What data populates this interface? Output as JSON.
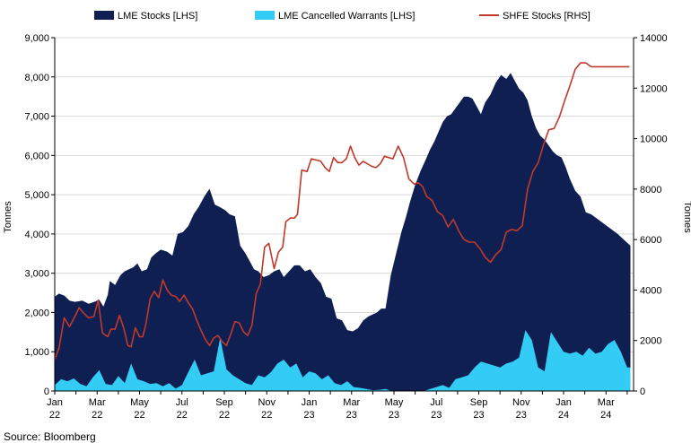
{
  "chart_data": {
    "type": "area",
    "source": "Source: Bloomberg",
    "y_left_label": "Tonnes",
    "y_right_label": "Tonnes",
    "y_left_range": [
      0,
      9000
    ],
    "y_right_range": [
      0,
      14000
    ],
    "y_left_ticks": [
      "0",
      "1,000",
      "2,000",
      "3,000",
      "4,000",
      "5,000",
      "6,000",
      "7,000",
      "8,000",
      "9,000"
    ],
    "y_right_ticks": [
      "0",
      "2000",
      "4000",
      "6000",
      "8000",
      "10000",
      "12000",
      "14000"
    ],
    "x_tick_labels": [
      {
        "month": "Jan",
        "year": "22"
      },
      {
        "month": "Mar",
        "year": "22"
      },
      {
        "month": "May",
        "year": "22"
      },
      {
        "month": "Jul",
        "year": "22"
      },
      {
        "month": "Sep",
        "year": "22"
      },
      {
        "month": "Nov",
        "year": "22"
      },
      {
        "month": "Jan",
        "year": "23"
      },
      {
        "month": "Mar",
        "year": "23"
      },
      {
        "month": "May",
        "year": "23"
      },
      {
        "month": "Jul",
        "year": "23"
      },
      {
        "month": "Sep",
        "year": "23"
      },
      {
        "month": "Nov",
        "year": "23"
      },
      {
        "month": "Jan",
        "year": "24"
      },
      {
        "month": "Mar",
        "year": "24"
      }
    ],
    "x_range_months": [
      0,
      27.3
    ],
    "colors": {
      "lme_stocks": "#0f1f52",
      "cancelled": "#33ccf5",
      "shfe": "#c0392b"
    },
    "series": [
      {
        "name": "LME Stocks [LHS]",
        "axis": "left",
        "x": [
          0,
          0.2,
          0.45,
          0.7,
          0.95,
          1.3,
          1.6,
          1.9,
          2.1,
          2.3,
          2.5,
          2.6,
          2.85,
          3.1,
          3.3,
          3.5,
          3.7,
          3.9,
          4.1,
          4.35,
          4.55,
          4.75,
          5.0,
          5.3,
          5.55,
          5.8,
          6.05,
          6.3,
          6.55,
          6.8,
          7.05,
          7.3,
          7.55,
          7.8,
          8.05,
          8.25,
          8.5,
          8.75,
          9.0,
          9.2,
          9.4,
          9.6,
          9.85,
          10.1,
          10.35,
          10.6,
          10.8,
          11.05,
          11.3,
          11.55,
          11.8,
          12.05,
          12.3,
          12.55,
          12.8,
          13.05,
          13.3,
          13.55,
          13.8,
          14.05,
          14.3,
          14.55,
          14.8,
          15.0,
          15.2,
          15.4,
          15.6,
          15.85,
          16.1,
          16.35,
          16.55,
          16.75,
          17.0,
          17.25,
          17.5,
          17.7,
          17.9,
          18.1,
          18.3,
          18.5,
          18.7,
          18.9,
          19.1,
          19.3,
          19.5,
          19.7,
          19.9,
          20.1,
          20.3,
          20.55,
          20.8,
          21.05,
          21.3,
          21.5,
          21.7,
          21.9,
          22.1,
          22.3,
          22.5,
          22.7,
          22.9,
          23.1,
          23.3,
          23.5,
          23.7,
          23.9,
          24.1,
          24.3,
          24.55,
          24.8,
          25.05,
          25.3,
          25.55,
          25.8,
          26.05,
          26.3,
          26.55,
          26.75,
          26.95,
          27.15
        ],
        "values": [
          2400,
          2480,
          2430,
          2300,
          2270,
          2300,
          2220,
          2280,
          2320,
          2150,
          2450,
          2800,
          2700,
          2950,
          3050,
          3100,
          3150,
          3250,
          3050,
          3100,
          3400,
          3500,
          3600,
          3550,
          3450,
          4000,
          4050,
          4200,
          4500,
          4700,
          4950,
          5150,
          4750,
          4680,
          4600,
          4500,
          4450,
          3700,
          3500,
          3300,
          3100,
          3050,
          2900,
          2950,
          3050,
          3100,
          2900,
          3050,
          3200,
          3200,
          3050,
          3100,
          2900,
          2750,
          2400,
          2350,
          1850,
          1800,
          1550,
          1520,
          1600,
          1800,
          1900,
          1950,
          2000,
          2100,
          2100,
          2950,
          3500,
          4050,
          4400,
          4800,
          5250,
          5600,
          5900,
          6150,
          6350,
          6600,
          6850,
          7000,
          7050,
          7200,
          7350,
          7500,
          7500,
          7450,
          7250,
          7050,
          7350,
          7550,
          7850,
          8050,
          7950,
          8100,
          7900,
          7700,
          7600,
          7400,
          7000,
          6700,
          6500,
          6400,
          6250,
          6100,
          6000,
          5950,
          5700,
          5400,
          5100,
          4950,
          4550,
          4500,
          4400,
          4300,
          4200,
          4100,
          4000,
          3900,
          3800,
          3700
        ]
      },
      {
        "name": "LME Cancelled Warrants [LHS]",
        "axis": "left",
        "x": [
          0,
          0.3,
          0.6,
          0.9,
          1.2,
          1.5,
          1.8,
          2.1,
          2.4,
          2.7,
          3.0,
          3.3,
          3.6,
          3.9,
          4.2,
          4.5,
          4.8,
          5.1,
          5.4,
          5.7,
          6.0,
          6.3,
          6.6,
          6.9,
          7.2,
          7.5,
          7.8,
          8.1,
          8.4,
          8.7,
          9.0,
          9.3,
          9.6,
          9.9,
          10.2,
          10.5,
          10.8,
          11.1,
          11.4,
          11.7,
          12.0,
          12.3,
          12.6,
          12.9,
          13.2,
          13.5,
          13.8,
          14.1,
          14.4,
          14.7,
          15.0,
          15.3,
          15.6,
          15.9,
          16.2,
          16.5,
          16.8,
          17.1,
          17.4,
          17.7,
          18.0,
          18.3,
          18.6,
          18.9,
          19.2,
          19.5,
          19.8,
          20.1,
          20.4,
          20.7,
          21.0,
          21.3,
          21.6,
          21.9,
          22.2,
          22.5,
          22.8,
          23.1,
          23.4,
          23.7,
          24.0,
          24.3,
          24.6,
          24.9,
          25.2,
          25.5,
          25.8,
          26.1,
          26.4,
          26.7,
          27.0,
          27.15
        ],
        "values": [
          150,
          300,
          250,
          320,
          180,
          120,
          350,
          530,
          180,
          150,
          380,
          200,
          700,
          300,
          250,
          180,
          200,
          120,
          200,
          60,
          150,
          480,
          800,
          400,
          450,
          500,
          1350,
          550,
          400,
          300,
          200,
          150,
          400,
          350,
          480,
          700,
          800,
          600,
          700,
          350,
          500,
          450,
          300,
          400,
          200,
          150,
          250,
          100,
          80,
          50,
          20,
          30,
          50,
          0,
          0,
          0,
          0,
          0,
          0,
          50,
          100,
          150,
          80,
          300,
          350,
          400,
          600,
          750,
          700,
          650,
          600,
          700,
          750,
          850,
          1550,
          1300,
          600,
          500,
          1500,
          1250,
          1000,
          950,
          1000,
          900,
          1100,
          950,
          1000,
          1200,
          1300,
          1000,
          600,
          600
        ]
      },
      {
        "name": "SHFE Stocks [RHS]",
        "axis": "right",
        "x": [
          0,
          0.2,
          0.45,
          0.7,
          0.95,
          1.15,
          1.35,
          1.6,
          1.85,
          2.05,
          2.25,
          2.5,
          2.65,
          2.85,
          3.05,
          3.25,
          3.45,
          3.6,
          3.8,
          4.0,
          4.15,
          4.3,
          4.5,
          4.7,
          4.9,
          5.1,
          5.3,
          5.5,
          5.7,
          5.9,
          6.1,
          6.3,
          6.5,
          6.7,
          6.9,
          7.1,
          7.3,
          7.5,
          7.7,
          7.9,
          8.1,
          8.3,
          8.5,
          8.7,
          8.9,
          9.1,
          9.3,
          9.5,
          9.7,
          9.9,
          10.1,
          10.35,
          10.55,
          10.75,
          10.9,
          11.1,
          11.3,
          11.45,
          11.65,
          11.9,
          12.1,
          12.35,
          12.55,
          12.75,
          12.95,
          13.15,
          13.35,
          13.55,
          13.75,
          13.95,
          14.15,
          14.35,
          14.55,
          14.75,
          14.95,
          15.15,
          15.35,
          15.55,
          15.75,
          15.95,
          16.2,
          16.45,
          16.7,
          16.95,
          17.15,
          17.35,
          17.55,
          17.8,
          18.05,
          18.3,
          18.55,
          18.8,
          19.05,
          19.3,
          19.55,
          19.8,
          20.05,
          20.3,
          20.55,
          20.8,
          21.05,
          21.3,
          21.55,
          21.8,
          22.05,
          22.3,
          22.55,
          22.8,
          23.05,
          23.3,
          23.55,
          23.8,
          24.05,
          24.3,
          24.55,
          24.8,
          25.05,
          25.3,
          25.55,
          25.8,
          26.05,
          26.3,
          26.5,
          26.7,
          26.9,
          27.1
        ],
        "values": [
          1250,
          1700,
          2900,
          2550,
          2950,
          3300,
          3100,
          2900,
          2950,
          3600,
          2300,
          2150,
          2450,
          2450,
          3000,
          2500,
          1800,
          1750,
          2500,
          2150,
          2150,
          2650,
          3650,
          3950,
          3700,
          4400,
          4000,
          3800,
          3750,
          3550,
          3800,
          3500,
          3250,
          2800,
          2400,
          2050,
          1800,
          2100,
          2200,
          1950,
          1800,
          2250,
          2750,
          2700,
          2350,
          2200,
          2600,
          3850,
          4250,
          5700,
          5850,
          4850,
          5500,
          5700,
          6700,
          6850,
          6850,
          7000,
          8750,
          8700,
          9200,
          9150,
          9100,
          8850,
          8700,
          9250,
          9050,
          9050,
          9200,
          9700,
          9250,
          8950,
          9100,
          9000,
          8900,
          8850,
          9000,
          9300,
          9250,
          9200,
          9700,
          9250,
          8400,
          8200,
          8250,
          8100,
          7700,
          7550,
          7100,
          6950,
          6500,
          6800,
          6350,
          6000,
          5900,
          5900,
          5650,
          5300,
          5100,
          5400,
          5600,
          6300,
          6400,
          6350,
          6550,
          8000,
          8700,
          9050,
          9750,
          10350,
          10400,
          10850,
          11500,
          12100,
          12750,
          13000,
          13000,
          12850,
          12850,
          12850,
          12850,
          12850,
          12850,
          12850,
          12850,
          12850
        ]
      }
    ]
  }
}
